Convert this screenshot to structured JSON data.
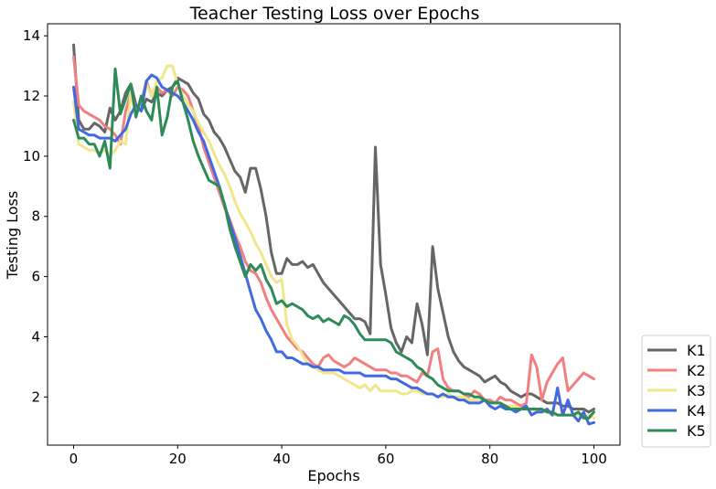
{
  "chart_data": {
    "type": "line",
    "title": "Teacher Testing Loss over Epochs",
    "xlabel": "Epochs",
    "ylabel": "Testing Loss",
    "xlim": [
      -5,
      105
    ],
    "ylim": [
      0.4,
      14.4
    ],
    "xticks": [
      0,
      20,
      40,
      60,
      80,
      100
    ],
    "yticks": [
      2,
      4,
      6,
      8,
      10,
      12,
      14
    ],
    "grid": false,
    "legend_position": "outside-right-bottom",
    "series": [
      {
        "name": "K1",
        "color": "#666666",
        "x": [
          0,
          1,
          2,
          3,
          4,
          5,
          6,
          7,
          8,
          9,
          10,
          11,
          12,
          13,
          14,
          15,
          16,
          17,
          18,
          19,
          20,
          21,
          22,
          23,
          24,
          25,
          26,
          27,
          28,
          29,
          30,
          31,
          32,
          33,
          34,
          35,
          36,
          37,
          38,
          39,
          40,
          41,
          42,
          43,
          44,
          45,
          46,
          47,
          48,
          49,
          50,
          51,
          52,
          53,
          54,
          55,
          56,
          57,
          58,
          59,
          60,
          61,
          62,
          63,
          64,
          65,
          66,
          67,
          68,
          69,
          70,
          71,
          72,
          73,
          74,
          75,
          76,
          77,
          78,
          79,
          80,
          81,
          82,
          83,
          84,
          85,
          86,
          87,
          88,
          89,
          90,
          91,
          92,
          93,
          94,
          95,
          96,
          97,
          98,
          99,
          100
        ],
        "values": [
          13.7,
          11.2,
          10.9,
          10.9,
          11.1,
          11.0,
          10.8,
          11.6,
          11.2,
          11.5,
          12.1,
          12.4,
          11.7,
          11.5,
          11.9,
          11.8,
          12.1,
          12.0,
          12.2,
          12.3,
          12.6,
          12.5,
          12.4,
          12.1,
          11.9,
          11.4,
          11.2,
          10.8,
          10.6,
          10.3,
          9.9,
          9.5,
          9.3,
          8.8,
          9.6,
          9.6,
          8.9,
          8.0,
          6.8,
          6.1,
          6.1,
          6.6,
          6.4,
          6.4,
          6.5,
          6.3,
          6.4,
          6.1,
          5.8,
          5.6,
          5.4,
          5.2,
          5.0,
          4.8,
          4.6,
          4.6,
          4.5,
          4.1,
          10.3,
          6.4,
          5.4,
          4.3,
          3.8,
          3.5,
          4.0,
          3.8,
          5.1,
          4.4,
          3.4,
          7.0,
          5.6,
          4.8,
          4.0,
          3.5,
          3.2,
          3.0,
          2.9,
          2.8,
          2.7,
          2.5,
          2.6,
          2.7,
          2.5,
          2.4,
          2.2,
          2.1,
          2.0,
          2.1,
          2.1,
          2.0,
          1.9,
          1.8,
          1.8,
          1.8,
          1.7,
          1.7,
          1.6,
          1.6,
          1.6,
          1.5,
          1.6
        ]
      },
      {
        "name": "K2",
        "color": "#f08080",
        "x": [
          0,
          1,
          2,
          3,
          4,
          5,
          6,
          7,
          8,
          9,
          10,
          11,
          12,
          13,
          14,
          15,
          16,
          17,
          18,
          19,
          20,
          21,
          22,
          23,
          24,
          25,
          26,
          27,
          28,
          29,
          30,
          31,
          32,
          33,
          34,
          35,
          36,
          37,
          38,
          39,
          40,
          41,
          42,
          43,
          44,
          45,
          46,
          47,
          48,
          49,
          50,
          51,
          52,
          53,
          54,
          55,
          56,
          57,
          58,
          59,
          60,
          61,
          62,
          63,
          64,
          65,
          66,
          67,
          68,
          69,
          70,
          71,
          72,
          73,
          74,
          75,
          76,
          77,
          78,
          79,
          80,
          81,
          82,
          83,
          84,
          85,
          86,
          87,
          88,
          89,
          90,
          91,
          92,
          93,
          94,
          95,
          96,
          97,
          98,
          99,
          100
        ],
        "values": [
          13.3,
          11.7,
          11.5,
          11.4,
          11.3,
          11.2,
          11.0,
          10.9,
          10.7,
          10.4,
          11.5,
          12.1,
          11.6,
          11.8,
          12.5,
          12.0,
          12.3,
          12.1,
          12.2,
          12.0,
          12.3,
          12.2,
          12.0,
          11.5,
          11.0,
          10.3,
          9.8,
          9.3,
          8.8,
          8.3,
          7.9,
          7.4,
          7.0,
          6.5,
          6.2,
          6.1,
          5.8,
          5.3,
          4.9,
          4.6,
          4.3,
          4.0,
          3.8,
          3.6,
          3.5,
          3.3,
          3.1,
          3.0,
          3.3,
          3.4,
          3.2,
          3.1,
          3.0,
          3.1,
          3.3,
          3.2,
          3.1,
          3.0,
          2.9,
          2.9,
          2.9,
          2.8,
          2.8,
          2.7,
          2.7,
          2.6,
          2.5,
          2.8,
          2.7,
          3.5,
          3.6,
          2.6,
          2.3,
          2.2,
          2.2,
          2.1,
          2.0,
          2.2,
          2.1,
          1.9,
          1.9,
          1.8,
          2.0,
          1.9,
          1.9,
          1.8,
          1.7,
          1.8,
          3.4,
          3.0,
          1.9,
          2.5,
          2.8,
          3.1,
          3.3,
          2.2,
          2.4,
          2.6,
          2.8,
          2.7,
          2.6
        ]
      },
      {
        "name": "K3",
        "color": "#f0e68c",
        "x": [
          0,
          1,
          2,
          3,
          4,
          5,
          6,
          7,
          8,
          9,
          10,
          11,
          12,
          13,
          14,
          15,
          16,
          17,
          18,
          19,
          20,
          21,
          22,
          23,
          24,
          25,
          26,
          27,
          28,
          29,
          30,
          31,
          32,
          33,
          34,
          35,
          36,
          37,
          38,
          39,
          40,
          41,
          42,
          43,
          44,
          45,
          46,
          47,
          48,
          49,
          50,
          51,
          52,
          53,
          54,
          55,
          56,
          57,
          58,
          59,
          60,
          61,
          62,
          63,
          64,
          65,
          66,
          67,
          68,
          69,
          70,
          71,
          72,
          73,
          74,
          75,
          76,
          77,
          78,
          79,
          80,
          81,
          82,
          83,
          84,
          85,
          86,
          87,
          88,
          89,
          90,
          91,
          92,
          93,
          94,
          95,
          96,
          97,
          98,
          99,
          100
        ],
        "values": [
          11.8,
          10.4,
          10.3,
          10.2,
          10.2,
          10.1,
          10.2,
          10.0,
          10.2,
          10.5,
          10.4,
          12.1,
          11.4,
          11.6,
          12.4,
          12.0,
          12.5,
          12.6,
          13.0,
          13.0,
          12.4,
          12.0,
          11.7,
          11.5,
          11.1,
          10.8,
          10.5,
          10.1,
          9.7,
          9.4,
          9.0,
          8.5,
          8.1,
          7.8,
          7.5,
          7.1,
          6.8,
          6.4,
          6.0,
          5.8,
          5.9,
          4.4,
          3.9,
          3.7,
          3.4,
          3.1,
          3.0,
          2.9,
          2.8,
          2.8,
          2.8,
          2.7,
          2.6,
          2.5,
          2.4,
          2.3,
          2.4,
          2.2,
          2.4,
          2.2,
          2.2,
          2.2,
          2.2,
          2.1,
          2.1,
          2.2,
          2.2,
          2.1,
          2.1,
          2.1,
          2.0,
          2.0,
          2.1,
          2.0,
          2.0,
          2.0,
          1.9,
          1.9,
          1.9,
          1.9,
          1.8,
          1.8,
          1.8,
          1.7,
          1.7,
          1.7,
          1.6,
          1.6,
          1.6,
          1.5,
          1.5,
          1.5,
          1.4,
          1.4,
          1.4,
          1.4,
          1.4,
          1.4,
          1.3,
          1.4,
          1.3
        ]
      },
      {
        "name": "K4",
        "color": "#4169e1",
        "x": [
          0,
          1,
          2,
          3,
          4,
          5,
          6,
          7,
          8,
          9,
          10,
          11,
          12,
          13,
          14,
          15,
          16,
          17,
          18,
          19,
          20,
          21,
          22,
          23,
          24,
          25,
          26,
          27,
          28,
          29,
          30,
          31,
          32,
          33,
          34,
          35,
          36,
          37,
          38,
          39,
          40,
          41,
          42,
          43,
          44,
          45,
          46,
          47,
          48,
          49,
          50,
          51,
          52,
          53,
          54,
          55,
          56,
          57,
          58,
          59,
          60,
          61,
          62,
          63,
          64,
          65,
          66,
          67,
          68,
          69,
          70,
          71,
          72,
          73,
          74,
          75,
          76,
          77,
          78,
          79,
          80,
          81,
          82,
          83,
          84,
          85,
          86,
          87,
          88,
          89,
          90,
          91,
          92,
          93,
          94,
          95,
          96,
          97,
          98,
          99,
          100
        ],
        "values": [
          12.3,
          10.9,
          10.8,
          10.7,
          10.7,
          10.6,
          10.6,
          10.6,
          10.5,
          10.7,
          10.9,
          11.4,
          11.7,
          11.5,
          12.5,
          12.7,
          12.6,
          12.3,
          12.2,
          12.1,
          12.0,
          11.8,
          11.5,
          11.2,
          10.8,
          10.5,
          10.0,
          9.5,
          9.0,
          8.4,
          7.8,
          7.3,
          6.7,
          6.1,
          5.5,
          4.9,
          4.6,
          4.2,
          3.9,
          3.5,
          3.5,
          3.3,
          3.3,
          3.2,
          3.1,
          3.1,
          3.0,
          3.0,
          2.9,
          2.9,
          2.9,
          2.9,
          2.8,
          2.8,
          2.8,
          2.8,
          2.7,
          2.7,
          2.7,
          2.7,
          2.7,
          2.6,
          2.6,
          2.5,
          2.4,
          2.3,
          2.3,
          2.2,
          2.1,
          2.1,
          2.0,
          2.1,
          2.0,
          2.0,
          1.9,
          1.9,
          1.8,
          1.8,
          1.8,
          1.9,
          1.7,
          1.6,
          1.7,
          1.6,
          1.6,
          1.5,
          1.6,
          1.7,
          1.4,
          1.5,
          1.5,
          1.6,
          1.4,
          2.3,
          1.4,
          1.9,
          1.4,
          1.2,
          1.5,
          1.1,
          1.15
        ]
      },
      {
        "name": "K5",
        "color": "#2e8b57",
        "x": [
          0,
          1,
          2,
          3,
          4,
          5,
          6,
          7,
          8,
          9,
          10,
          11,
          12,
          13,
          14,
          15,
          16,
          17,
          18,
          19,
          20,
          21,
          22,
          23,
          24,
          25,
          26,
          27,
          28,
          29,
          30,
          31,
          32,
          33,
          34,
          35,
          36,
          37,
          38,
          39,
          40,
          41,
          42,
          43,
          44,
          45,
          46,
          47,
          48,
          49,
          50,
          51,
          52,
          53,
          54,
          55,
          56,
          57,
          58,
          59,
          60,
          61,
          62,
          63,
          64,
          65,
          66,
          67,
          68,
          69,
          70,
          71,
          72,
          73,
          74,
          75,
          76,
          77,
          78,
          79,
          80,
          81,
          82,
          83,
          84,
          85,
          86,
          87,
          88,
          89,
          90,
          91,
          92,
          93,
          94,
          95,
          96,
          97,
          98,
          99,
          100
        ],
        "values": [
          11.2,
          10.6,
          10.6,
          10.4,
          10.4,
          10.0,
          10.5,
          9.6,
          12.9,
          11.4,
          11.9,
          12.4,
          11.3,
          12.0,
          11.5,
          11.2,
          12.3,
          10.7,
          11.3,
          12.3,
          12.5,
          11.8,
          11.2,
          10.5,
          10.0,
          9.6,
          9.2,
          9.1,
          9.0,
          8.4,
          7.6,
          7.0,
          6.5,
          6.0,
          6.4,
          6.2,
          6.4,
          5.9,
          5.6,
          5.1,
          5.2,
          5.0,
          5.1,
          5.0,
          4.9,
          4.7,
          4.6,
          4.7,
          4.5,
          4.6,
          4.5,
          4.4,
          4.7,
          4.6,
          4.4,
          4.1,
          3.9,
          3.9,
          3.9,
          3.9,
          3.9,
          3.8,
          3.5,
          3.4,
          3.3,
          3.2,
          3.0,
          2.9,
          2.7,
          2.6,
          2.4,
          2.3,
          2.2,
          2.2,
          2.2,
          2.1,
          2.1,
          2.0,
          2.0,
          1.9,
          1.8,
          1.8,
          1.8,
          1.7,
          1.6,
          1.6,
          1.6,
          1.6,
          1.6,
          1.6,
          1.6,
          1.5,
          1.5,
          1.4,
          1.4,
          1.4,
          1.4,
          1.5,
          1.3,
          1.3,
          1.5
        ]
      }
    ]
  }
}
